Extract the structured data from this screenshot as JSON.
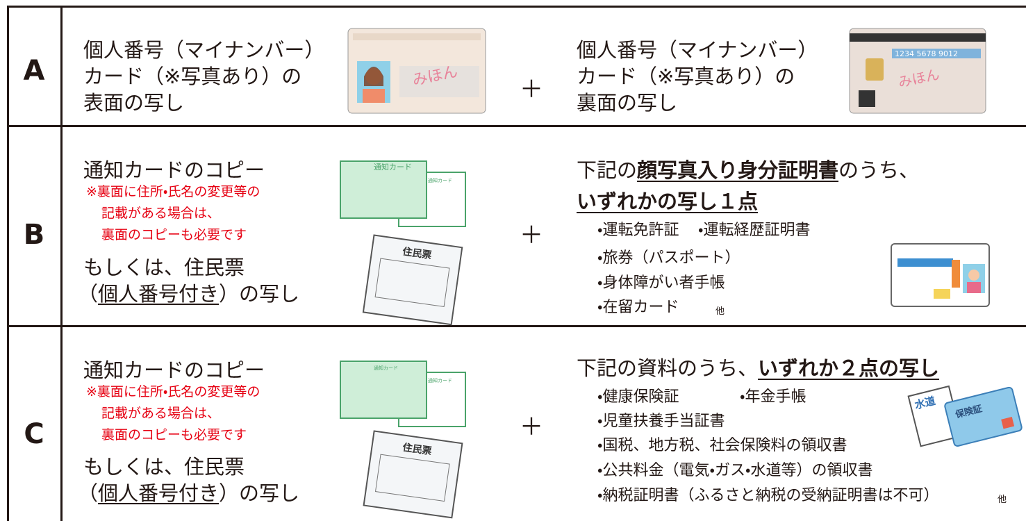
{
  "rows": [
    {
      "label": "A",
      "left": {
        "lines": [
          "個人番号（マイナンバー）",
          "カード（※写真あり）の",
          "表面の写し"
        ]
      },
      "plus": "＋",
      "right": {
        "lines": [
          "個人番号（マイナンバー）",
          "カード（※写真あり）の",
          "裏面の写し"
        ]
      }
    },
    {
      "label": "B",
      "left": {
        "title": "通知カードのコピー",
        "notes": [
          "※裏面に住所・氏名の変更等の",
          "記載がある場合は、",
          "裏面のコピーも必要です"
        ],
        "alt": "もしくは、住民票",
        "alt_line": [
          "（",
          "個人番号付き",
          "）の写し"
        ]
      },
      "plus": "＋",
      "right": {
        "heading": [
          "下記の",
          "顔写真入り身分証明書",
          "のうち、"
        ],
        "heading2": "いずれかの写し１点",
        "items": [
          "・運転免許証",
          "・運転経歴証明書",
          "・旅券（パスポート）",
          "・身体障がい者手帳",
          "・在留カード"
        ],
        "etc": "他"
      }
    },
    {
      "label": "C",
      "left": {
        "title": "通知カードのコピー",
        "notes": [
          "※裏面に住所・氏名の変更等の",
          "記載がある場合は、",
          "裏面のコピーも必要です"
        ],
        "alt": "もしくは、住民票",
        "alt_line": [
          "（",
          "個人番号付き",
          "）の写し"
        ]
      },
      "plus": "＋",
      "right": {
        "heading": [
          "下記の資料のうち、",
          "いずれか２点の写し"
        ],
        "items": [
          "・健康保険証",
          "・年金手帳",
          "・児童扶養手当証書",
          "・国税、地方税、社会保険料の領収書",
          "・公共料金（電気・ガス・水道等）の領収書",
          "・納税証明書（ふるさと納税の受納証明書は不可）"
        ],
        "etc": "他"
      }
    }
  ],
  "illustrations": {
    "sample": "みほん",
    "card_number": "1234 5678 9012",
    "notice_card": "通知カード",
    "resident_record": "住民票",
    "water": "水道",
    "insurance": "保険証"
  }
}
